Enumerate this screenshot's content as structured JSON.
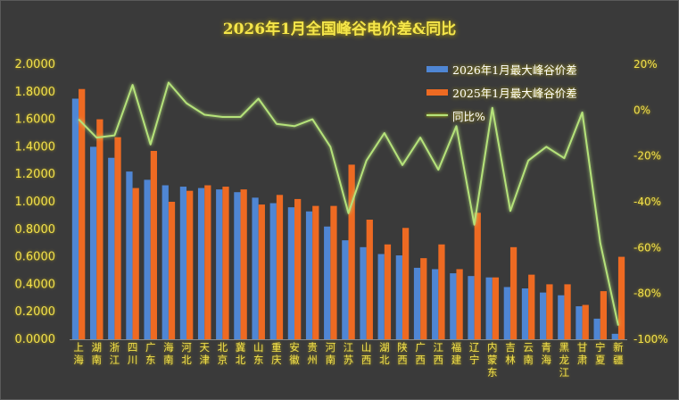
{
  "chart_data": {
    "type": "bar",
    "title": "2026年1月全国峰谷电价差&同比",
    "categories": [
      "上海",
      "湖南",
      "浙江",
      "四川",
      "广东",
      "海南",
      "河北",
      "天津",
      "北京",
      "冀北",
      "山东",
      "重庆",
      "安徽",
      "贵州",
      "河南",
      "江苏",
      "山西",
      "湖北",
      "陕西",
      "广西",
      "江西",
      "福建",
      "辽宁",
      "内蒙东",
      "吉林",
      "云南",
      "青海",
      "黑龙江",
      "甘肃",
      "宁夏",
      "新疆"
    ],
    "series": [
      {
        "name": "2026年1月最大峰谷价差",
        "axis": "left",
        "color": "#4f86d4",
        "values": [
          1.75,
          1.4,
          1.32,
          1.22,
          1.16,
          1.12,
          1.11,
          1.1,
          1.09,
          1.07,
          1.03,
          0.99,
          0.96,
          0.93,
          0.82,
          0.72,
          0.67,
          0.62,
          0.61,
          0.52,
          0.51,
          0.48,
          0.46,
          0.45,
          0.38,
          0.37,
          0.34,
          0.32,
          0.24,
          0.15,
          0.04
        ]
      },
      {
        "name": "2025年1月最大峰谷价差",
        "axis": "left",
        "color": "#ee6a22",
        "values": [
          1.82,
          1.6,
          1.47,
          1.1,
          1.37,
          1.0,
          1.08,
          1.12,
          1.11,
          1.09,
          0.98,
          1.05,
          1.02,
          0.97,
          0.97,
          1.27,
          0.87,
          0.69,
          0.81,
          0.59,
          0.69,
          0.51,
          0.92,
          0.45,
          0.67,
          0.47,
          0.4,
          0.4,
          0.25,
          0.35,
          0.6
        ]
      },
      {
        "name": "同比%",
        "axis": "right",
        "type": "line",
        "color": "#b5e27a",
        "values": [
          -4,
          -12,
          -11,
          11,
          -15,
          12,
          3,
          -2,
          -3,
          -3,
          5,
          -6,
          -7,
          -4,
          -16,
          -45,
          -22,
          -10,
          -24,
          -12,
          -26,
          -7,
          -50,
          1,
          -44,
          -22,
          -16,
          -21,
          -1,
          -58,
          -94
        ]
      }
    ],
    "ylim": [
      0,
      2.0
    ],
    "yticks": [
      "0.0000",
      "0.2000",
      "0.4000",
      "0.6000",
      "0.8000",
      "1.0000",
      "1.2000",
      "1.4000",
      "1.6000",
      "1.8000",
      "2.0000"
    ],
    "y2lim": [
      -100,
      20
    ],
    "y2ticks": [
      "-100%",
      "-80%",
      "-60%",
      "-40%",
      "-20%",
      "0%",
      "20%"
    ],
    "legend_position": "top-right",
    "grid": false
  }
}
